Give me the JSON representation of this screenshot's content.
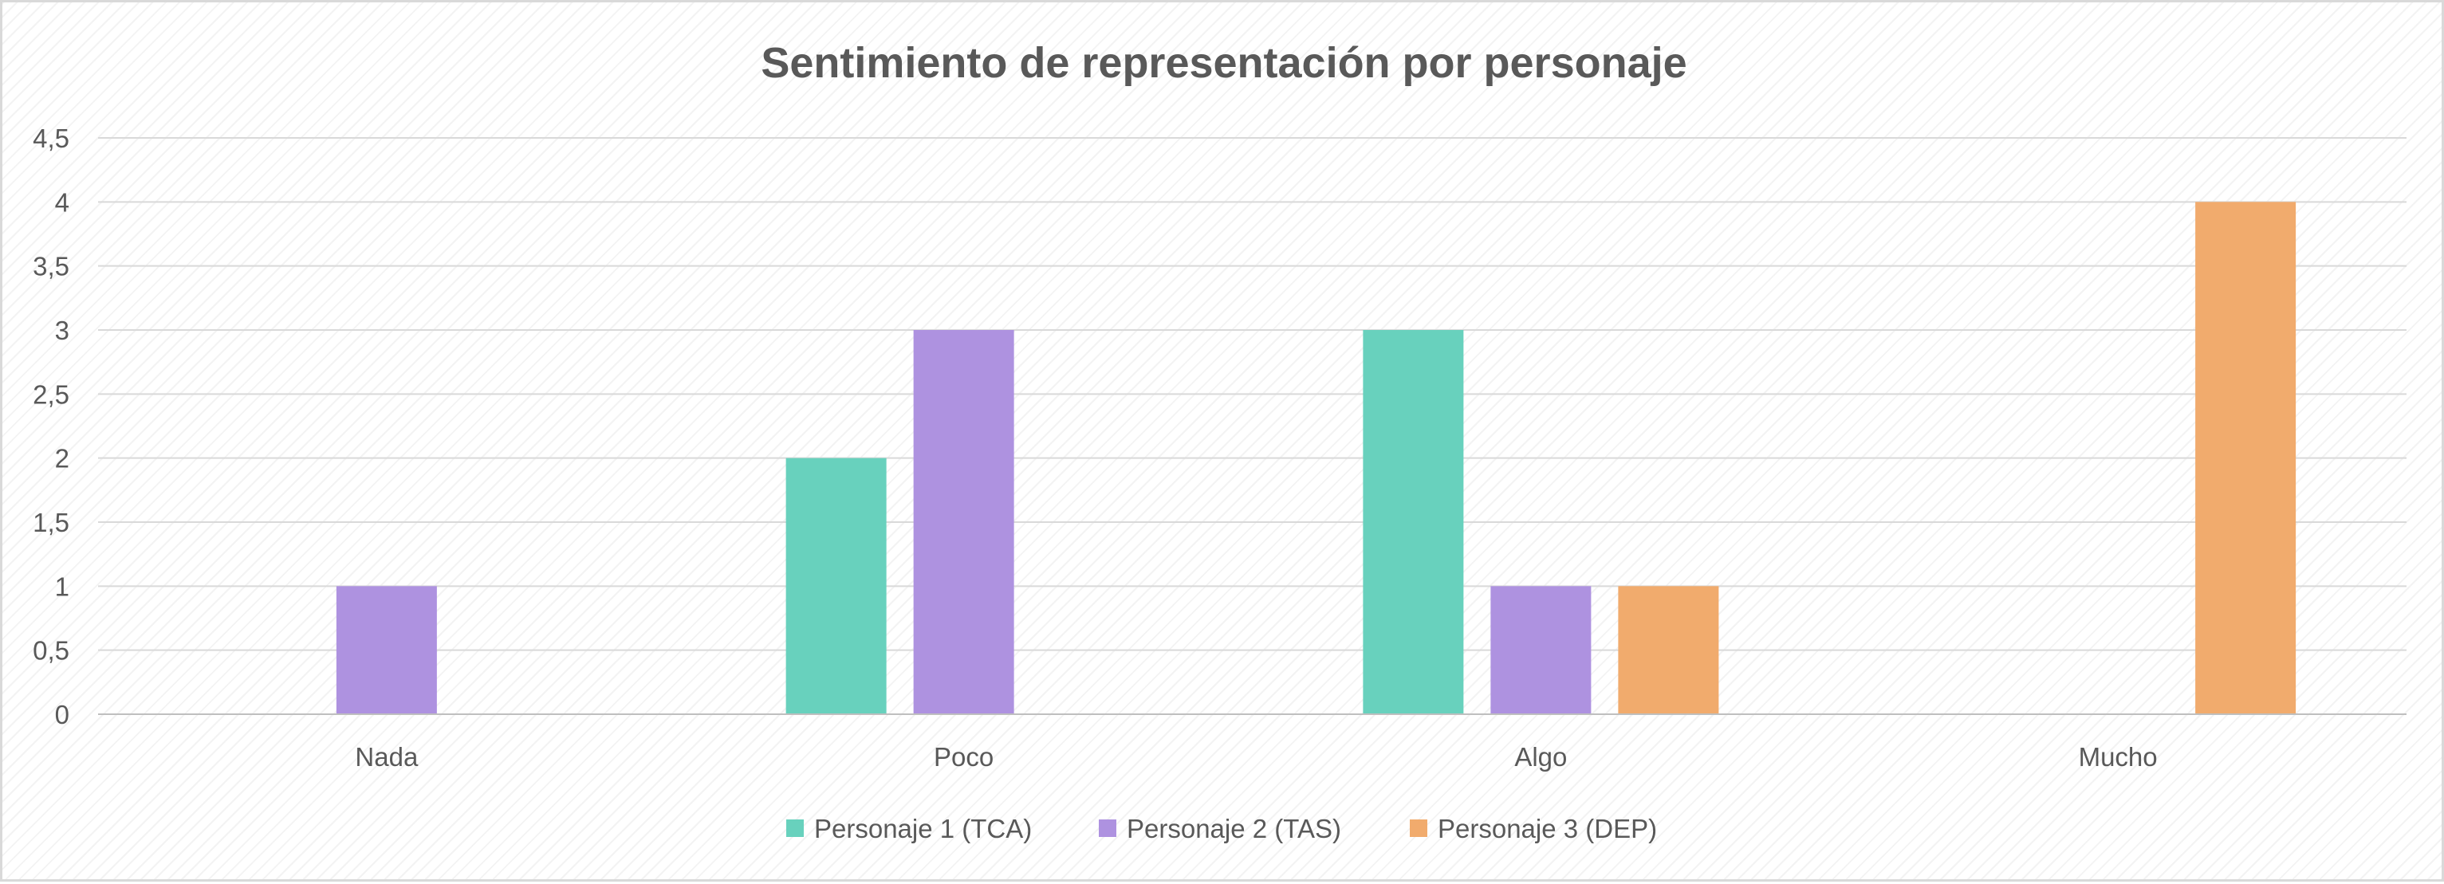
{
  "chart_data": {
    "type": "bar",
    "title": "Sentimiento de representación por personaje",
    "xlabel": "",
    "ylabel": "",
    "categories": [
      "Nada",
      "Poco",
      "Algo",
      "Mucho"
    ],
    "series": [
      {
        "name": "Personaje 1 (TCA)",
        "color": "#68d1bd",
        "values": [
          0,
          2,
          3,
          0
        ]
      },
      {
        "name": "Personaje 2 (TAS)",
        "color": "#ae92e0",
        "values": [
          1,
          3,
          1,
          0
        ]
      },
      {
        "name": "Personaje 3 (DEP)",
        "color": "#f1ab6d",
        "values": [
          0,
          0,
          1,
          4
        ]
      }
    ],
    "ylim": [
      0,
      4.5
    ],
    "yticks": [
      "0",
      "0,5",
      "1",
      "1,5",
      "2",
      "2,5",
      "3",
      "3,5",
      "4",
      "4,5"
    ],
    "grid": true,
    "legend_position": "bottom"
  }
}
